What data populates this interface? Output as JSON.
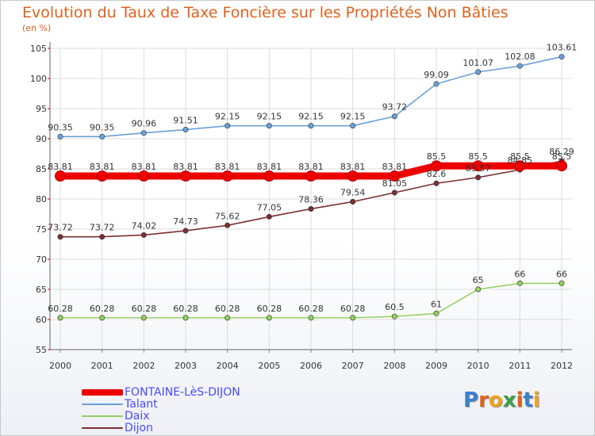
{
  "title": "Evolution du Taux de Taxe Foncière sur les Propriétés Non Bâties",
  "unit_label": "(en %)",
  "logo": {
    "text": "Proxiti",
    "letter_colors": [
      "#3a7fd0",
      "#e0611c",
      "#f0a020",
      "#3aa04a",
      "#e0611c",
      "#3a7fd0",
      "#f0a020"
    ]
  },
  "chart_data": {
    "type": "line",
    "title": "Evolution du Taux de Taxe Foncière sur les Propriétés Non Bâties",
    "ylabel": "(en %)",
    "xlabel": "",
    "x": [
      "2000",
      "2001",
      "2002",
      "2003",
      "2004",
      "2005",
      "2006",
      "2007",
      "2008",
      "2009",
      "2010",
      "2011",
      "2012"
    ],
    "ylim": [
      55,
      105
    ],
    "yticks": [
      55,
      60,
      65,
      70,
      75,
      80,
      85,
      90,
      95,
      100,
      105
    ],
    "grid": "horizontal",
    "legend_position": "bottom-left",
    "series": [
      {
        "name": "FONTAINE-LèS-DIJON",
        "color": "#ee0000",
        "emphasis": "thick",
        "values": [
          83.81,
          83.81,
          83.81,
          83.81,
          83.81,
          83.81,
          83.81,
          83.81,
          83.81,
          85.5,
          85.5,
          85.5,
          85.5
        ],
        "labels": [
          "83.81",
          "83.81",
          "83.81",
          "83.81",
          "83.81",
          "83.81",
          "83.81",
          "83.81",
          "83.81",
          "85.5",
          "85.5",
          "85.5",
          "85.5"
        ]
      },
      {
        "name": "Talant",
        "color": "#6aa0d8",
        "values": [
          90.35,
          90.35,
          90.96,
          91.51,
          92.15,
          92.15,
          92.15,
          92.15,
          93.72,
          99.09,
          101.07,
          102.08,
          103.61
        ],
        "labels": [
          "90.35",
          "90.35",
          "90.96",
          "91.51",
          "92.15",
          "92.15",
          "92.15",
          "92.15",
          "93.72",
          "99.09",
          "101.07",
          "102.08",
          "103.61"
        ]
      },
      {
        "name": "Daix",
        "color": "#92d060",
        "values": [
          60.28,
          60.28,
          60.28,
          60.28,
          60.28,
          60.28,
          60.28,
          60.28,
          60.5,
          61,
          65,
          66,
          66
        ],
        "labels": [
          "60.28",
          "60.28",
          "60.28",
          "60.28",
          "60.28",
          "60.28",
          "60.28",
          "60.28",
          "60.5",
          "61",
          "65",
          "66",
          "66"
        ]
      },
      {
        "name": "Dijon",
        "color": "#7a3030",
        "values": [
          73.72,
          73.72,
          74.02,
          74.73,
          75.62,
          77.05,
          78.36,
          79.54,
          81.05,
          82.6,
          83.57,
          84.85,
          86.29
        ],
        "labels": [
          "73.72",
          "73.72",
          "74.02",
          "74.73",
          "75.62",
          "77.05",
          "78.36",
          "79.54",
          "81.05",
          "82.6",
          "83.57",
          "84.85",
          "86.29"
        ]
      }
    ]
  }
}
